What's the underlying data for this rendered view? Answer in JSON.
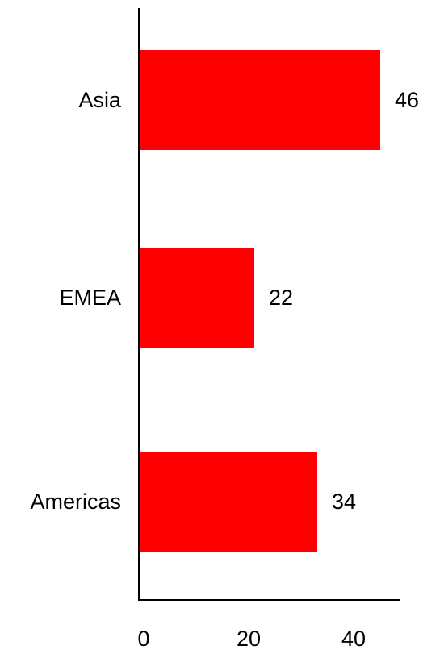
{
  "chart_data": {
    "type": "bar",
    "orientation": "horizontal",
    "title": "",
    "xlabel": "",
    "ylabel": "",
    "categories": [
      "Asia",
      "EMEA",
      "Americas"
    ],
    "values": [
      46,
      22,
      34
    ],
    "data_labels": [
      "46",
      "22",
      "34"
    ],
    "xlim": [
      0,
      50
    ],
    "xticks": [
      0,
      20,
      40
    ],
    "xtick_labels": [
      "0",
      "20",
      "40"
    ],
    "grid": false,
    "legend": "none",
    "colors": {
      "bar": "#ff0000",
      "axis": "#000000",
      "text": "#000000"
    }
  }
}
